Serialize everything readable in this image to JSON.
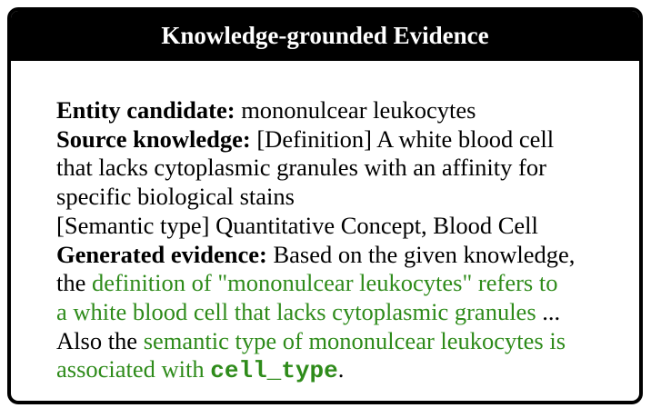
{
  "title": "Knowledge-grounded Evidence",
  "entity": {
    "label": "Entity candidate:",
    "value": "mononulcear leukocytes"
  },
  "source": {
    "label": "Source knowledge:",
    "lines": [
      "[Definition] A white blood cell",
      "that lacks cytoplasmic granules with an affinity for",
      "specific biological stains",
      "[Semantic type] Quantitative Concept, Blood Cell"
    ]
  },
  "evidence": {
    "label": "Generated evidence:",
    "intro": "Based on the given knowledge,",
    "line2_prefix": "the ",
    "line2_green": "definition of \"mononulcear leukocytes\" refers to",
    "line3_green": "a white blood cell that lacks cytoplasmic granules",
    "line3_suffix": " ...",
    "line4_prefix": "Also the ",
    "line4_green": "semantic type of mononulcear leukocytes is",
    "line5_green": "associated with ",
    "line5_code": "cell_type",
    "line5_suffix": "."
  },
  "colors": {
    "header_background": "#000000",
    "header_text": "#ffffff",
    "highlight_green": "#2e8b1a",
    "border": "#000000"
  }
}
